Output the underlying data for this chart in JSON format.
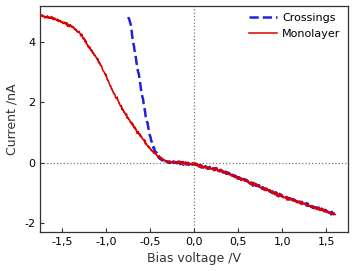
{
  "title": "",
  "xlabel": "Bias voltage /V",
  "ylabel": "Current /nA",
  "xlim": [
    -1.75,
    1.75
  ],
  "ylim": [
    -2.3,
    5.2
  ],
  "xticks": [
    -1.5,
    -1.0,
    -0.5,
    0.0,
    0.5,
    1.0,
    1.5
  ],
  "xtick_labels": [
    "-1,5",
    "-1,0",
    "-0,5",
    "0,0",
    "0,5",
    "1,0",
    "1,5"
  ],
  "yticks": [
    -2,
    0,
    2,
    4
  ],
  "ytick_labels": [
    "-2",
    "0",
    "2",
    "4"
  ],
  "monolayer_color": "#dd0000",
  "crossings_color": "#2222dd",
  "background_color": "#ffffff",
  "legend_crossings": "Crossings",
  "legend_monolayer": "Monolayer",
  "vline_x": 0.0,
  "hline_y": 0.0
}
